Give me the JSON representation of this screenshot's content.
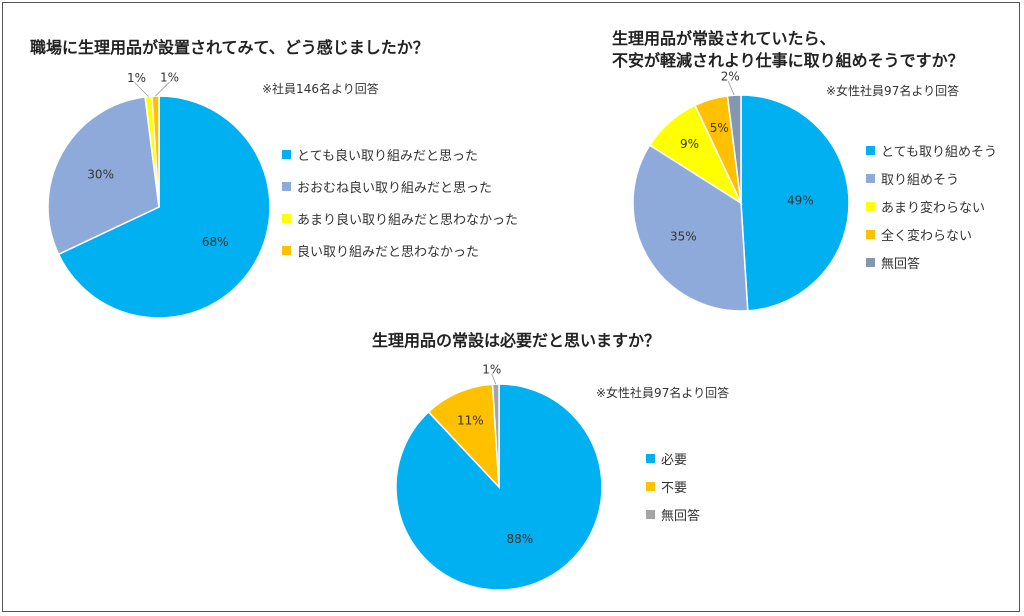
{
  "chart_data": [
    {
      "type": "pie",
      "title": "職場に生理用品が設置されてみて、どう感じましたか？",
      "note": "※社員146名より回答",
      "slices": [
        {
          "label": "とても良い取り組みだと思った",
          "value": 68,
          "display": "68%",
          "color": "#00b0f0"
        },
        {
          "label": "おおむね良い取り組みだと思った",
          "value": 30,
          "display": "30%",
          "color": "#8eaadb"
        },
        {
          "label": "あまり良い取り組みだと思わなかった",
          "value": 1,
          "display": "1%",
          "color": "#ffff00"
        },
        {
          "label": "良い取り組みだと思わなかった",
          "value": 1,
          "display": "1%",
          "color": "#ffc000"
        }
      ]
    },
    {
      "type": "pie",
      "title_lines": [
        "生理用品が常設されていたら、",
        "不安が軽減されより仕事に取り組めそうですか？"
      ],
      "note": "※女性社員97名より回答",
      "slices": [
        {
          "label": "とても取り組めそう",
          "value": 49,
          "display": "49%",
          "color": "#00b0f0"
        },
        {
          "label": "取り組めそう",
          "value": 35,
          "display": "35%",
          "color": "#8eaadb"
        },
        {
          "label": "あまり変わらない",
          "value": 9,
          "display": "9%",
          "color": "#ffff00"
        },
        {
          "label": "全く変わらない",
          "value": 5,
          "display": "5%",
          "color": "#ffc000"
        },
        {
          "label": "無回答",
          "value": 2,
          "display": "2%",
          "color": "#8497b0"
        }
      ]
    },
    {
      "type": "pie",
      "title": "生理用品の常設は必要だと思いますか？",
      "note": "※女性社員97名より回答",
      "slices": [
        {
          "label": "必要",
          "value": 88,
          "display": "88%",
          "color": "#00b0f0"
        },
        {
          "label": "不要",
          "value": 11,
          "display": "11%",
          "color": "#ffc000"
        },
        {
          "label": "無回答",
          "value": 1,
          "display": "1%",
          "color": "#a5a5a5"
        }
      ]
    }
  ]
}
